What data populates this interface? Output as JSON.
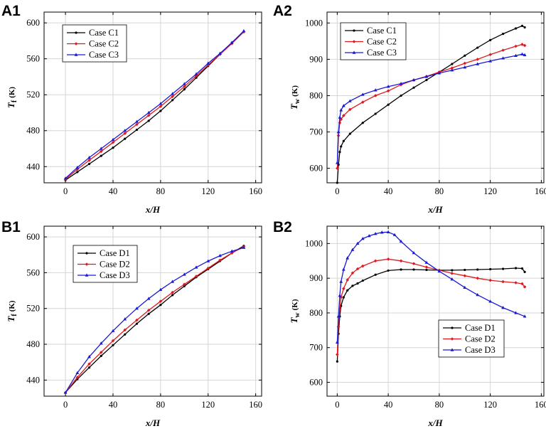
{
  "figure": {
    "panels": [
      "A1",
      "A2",
      "B1",
      "B2"
    ]
  },
  "chart_data": [
    {
      "panel": "A1",
      "type": "line",
      "title": "",
      "xlabel": "x/H",
      "ylabel_main": "T",
      "ylabel_sub": "f",
      "ylabel_unit": "(K)",
      "xlim": [
        -18,
        165
      ],
      "ylim": [
        422,
        612
      ],
      "xticks": [
        0,
        40,
        80,
        120,
        160
      ],
      "yticks": [
        440,
        480,
        520,
        560,
        600
      ],
      "grid": true,
      "legend_position": "top-left",
      "series": [
        {
          "name": "Case C1",
          "color": "#000000",
          "marker": "circle",
          "x": [
            0,
            10,
            20,
            30,
            40,
            50,
            60,
            70,
            80,
            90,
            100,
            110,
            120,
            130,
            140,
            150
          ],
          "y": [
            425,
            434,
            443,
            452,
            461,
            471,
            481,
            491,
            502,
            514,
            526,
            539,
            552,
            565,
            578,
            590
          ]
        },
        {
          "name": "Case C2",
          "color": "#e0191e",
          "marker": "diamond",
          "x": [
            0,
            10,
            20,
            30,
            40,
            50,
            60,
            70,
            80,
            90,
            100,
            110,
            120,
            130,
            140,
            150
          ],
          "y": [
            426,
            437,
            447,
            457,
            467,
            477,
            487,
            497,
            507,
            518,
            529,
            541,
            553,
            565,
            577,
            590
          ]
        },
        {
          "name": "Case C3",
          "color": "#1a1ad6",
          "marker": "triangle",
          "x": [
            0,
            10,
            20,
            30,
            40,
            50,
            60,
            70,
            80,
            90,
            100,
            110,
            120,
            130,
            140,
            150
          ],
          "y": [
            427,
            439,
            450,
            460,
            470,
            480,
            490,
            500,
            510,
            521,
            532,
            543,
            555,
            566,
            578,
            591
          ]
        }
      ]
    },
    {
      "panel": "A2",
      "type": "line",
      "title": "",
      "xlabel": "x/H",
      "ylabel_main": "T",
      "ylabel_sub": "w",
      "ylabel_unit": "(K)",
      "xlim": [
        -8,
        162
      ],
      "ylim": [
        560,
        1030
      ],
      "xticks": [
        0,
        40,
        80,
        120,
        160
      ],
      "yticks": [
        600,
        700,
        800,
        900,
        1000
      ],
      "grid": true,
      "legend_position": "top-left",
      "series": [
        {
          "name": "Case C1",
          "color": "#000000",
          "marker": "circle",
          "x": [
            0,
            1,
            2,
            3,
            5,
            10,
            20,
            30,
            40,
            50,
            60,
            70,
            80,
            90,
            100,
            110,
            120,
            130,
            140,
            145,
            147
          ],
          "y": [
            560,
            610,
            645,
            660,
            675,
            695,
            725,
            750,
            775,
            800,
            822,
            843,
            865,
            887,
            910,
            932,
            953,
            970,
            985,
            992,
            988
          ]
        },
        {
          "name": "Case C2",
          "color": "#e0191e",
          "marker": "diamond",
          "x": [
            0,
            1,
            2,
            3,
            5,
            10,
            20,
            30,
            40,
            50,
            60,
            70,
            80,
            90,
            100,
            110,
            120,
            130,
            140,
            145,
            147
          ],
          "y": [
            600,
            690,
            725,
            735,
            745,
            762,
            782,
            800,
            813,
            830,
            843,
            853,
            865,
            876,
            889,
            900,
            913,
            925,
            936,
            941,
            938
          ]
        },
        {
          "name": "Case C3",
          "color": "#1a1ad6",
          "marker": "triangle",
          "x": [
            0,
            1,
            2,
            3,
            5,
            10,
            20,
            30,
            40,
            50,
            60,
            70,
            80,
            90,
            100,
            110,
            120,
            130,
            140,
            145,
            147
          ],
          "y": [
            615,
            700,
            740,
            760,
            772,
            785,
            803,
            815,
            825,
            833,
            843,
            852,
            862,
            870,
            878,
            887,
            895,
            903,
            910,
            914,
            912
          ]
        }
      ]
    },
    {
      "panel": "B1",
      "type": "line",
      "title": "",
      "xlabel": "x/H",
      "ylabel_main": "T",
      "ylabel_sub": "f",
      "ylabel_unit": "(K)",
      "xlim": [
        -18,
        165
      ],
      "ylim": [
        422,
        612
      ],
      "xticks": [
        0,
        40,
        80,
        120,
        160
      ],
      "yticks": [
        440,
        480,
        520,
        560,
        600
      ],
      "grid": true,
      "legend_position": "top-left",
      "series": [
        {
          "name": "Case D1",
          "color": "#000000",
          "marker": "circle",
          "x": [
            0,
            10,
            20,
            30,
            40,
            50,
            60,
            70,
            80,
            90,
            100,
            110,
            120,
            130,
            140,
            150
          ],
          "y": [
            426,
            441,
            454,
            467,
            479,
            491,
            503,
            514,
            524,
            535,
            545,
            555,
            564,
            573,
            582,
            590
          ]
        },
        {
          "name": "Case D2",
          "color": "#e0191e",
          "marker": "diamond",
          "x": [
            0,
            10,
            20,
            30,
            40,
            50,
            60,
            70,
            80,
            90,
            100,
            110,
            120,
            130,
            140,
            150
          ],
          "y": [
            426,
            443,
            458,
            471,
            484,
            496,
            507,
            518,
            528,
            538,
            547,
            556,
            565,
            574,
            582,
            589
          ]
        },
        {
          "name": "Case D3",
          "color": "#1a1ad6",
          "marker": "triangle",
          "x": [
            0,
            10,
            20,
            30,
            40,
            50,
            60,
            70,
            80,
            90,
            100,
            110,
            120,
            130,
            140,
            150
          ],
          "y": [
            426,
            448,
            466,
            481,
            495,
            508,
            520,
            531,
            541,
            550,
            558,
            566,
            573,
            579,
            584,
            588
          ]
        }
      ]
    },
    {
      "panel": "B2",
      "type": "line",
      "title": "",
      "xlabel": "x/H",
      "ylabel_main": "T",
      "ylabel_sub": "w",
      "ylabel_unit": "(K)",
      "xlim": [
        -8,
        162
      ],
      "ylim": [
        560,
        1050
      ],
      "xticks": [
        0,
        40,
        80,
        120,
        160
      ],
      "yticks": [
        600,
        700,
        800,
        900,
        1000
      ],
      "grid": true,
      "legend_position": "bottom-right",
      "series": [
        {
          "name": "Case D1",
          "color": "#000000",
          "marker": "circle",
          "x": [
            0,
            1,
            2,
            3,
            5,
            8,
            12,
            16,
            20,
            30,
            40,
            50,
            60,
            70,
            80,
            90,
            100,
            110,
            120,
            130,
            140,
            145,
            147
          ],
          "y": [
            660,
            740,
            790,
            820,
            845,
            865,
            878,
            885,
            893,
            910,
            922,
            925,
            925,
            924,
            923,
            923,
            924,
            925,
            926,
            927,
            929,
            928,
            918
          ]
        },
        {
          "name": "Case D2",
          "color": "#e0191e",
          "marker": "diamond",
          "x": [
            0,
            1,
            2,
            3,
            5,
            8,
            12,
            16,
            20,
            30,
            40,
            50,
            60,
            70,
            80,
            90,
            100,
            110,
            120,
            130,
            140,
            145,
            147
          ],
          "y": [
            680,
            760,
            810,
            845,
            870,
            895,
            915,
            927,
            935,
            950,
            955,
            950,
            942,
            932,
            923,
            914,
            907,
            900,
            894,
            890,
            887,
            884,
            875
          ]
        },
        {
          "name": "Case D3",
          "color": "#1a1ad6",
          "marker": "triangle",
          "x": [
            0,
            1,
            2,
            3,
            5,
            8,
            12,
            16,
            20,
            25,
            30,
            35,
            40,
            45,
            50,
            60,
            70,
            80,
            90,
            100,
            110,
            120,
            130,
            140,
            147
          ],
          "y": [
            715,
            790,
            850,
            890,
            925,
            958,
            982,
            1000,
            1014,
            1022,
            1028,
            1032,
            1033,
            1025,
            1006,
            973,
            945,
            920,
            897,
            873,
            852,
            833,
            815,
            800,
            790
          ]
        }
      ]
    }
  ]
}
